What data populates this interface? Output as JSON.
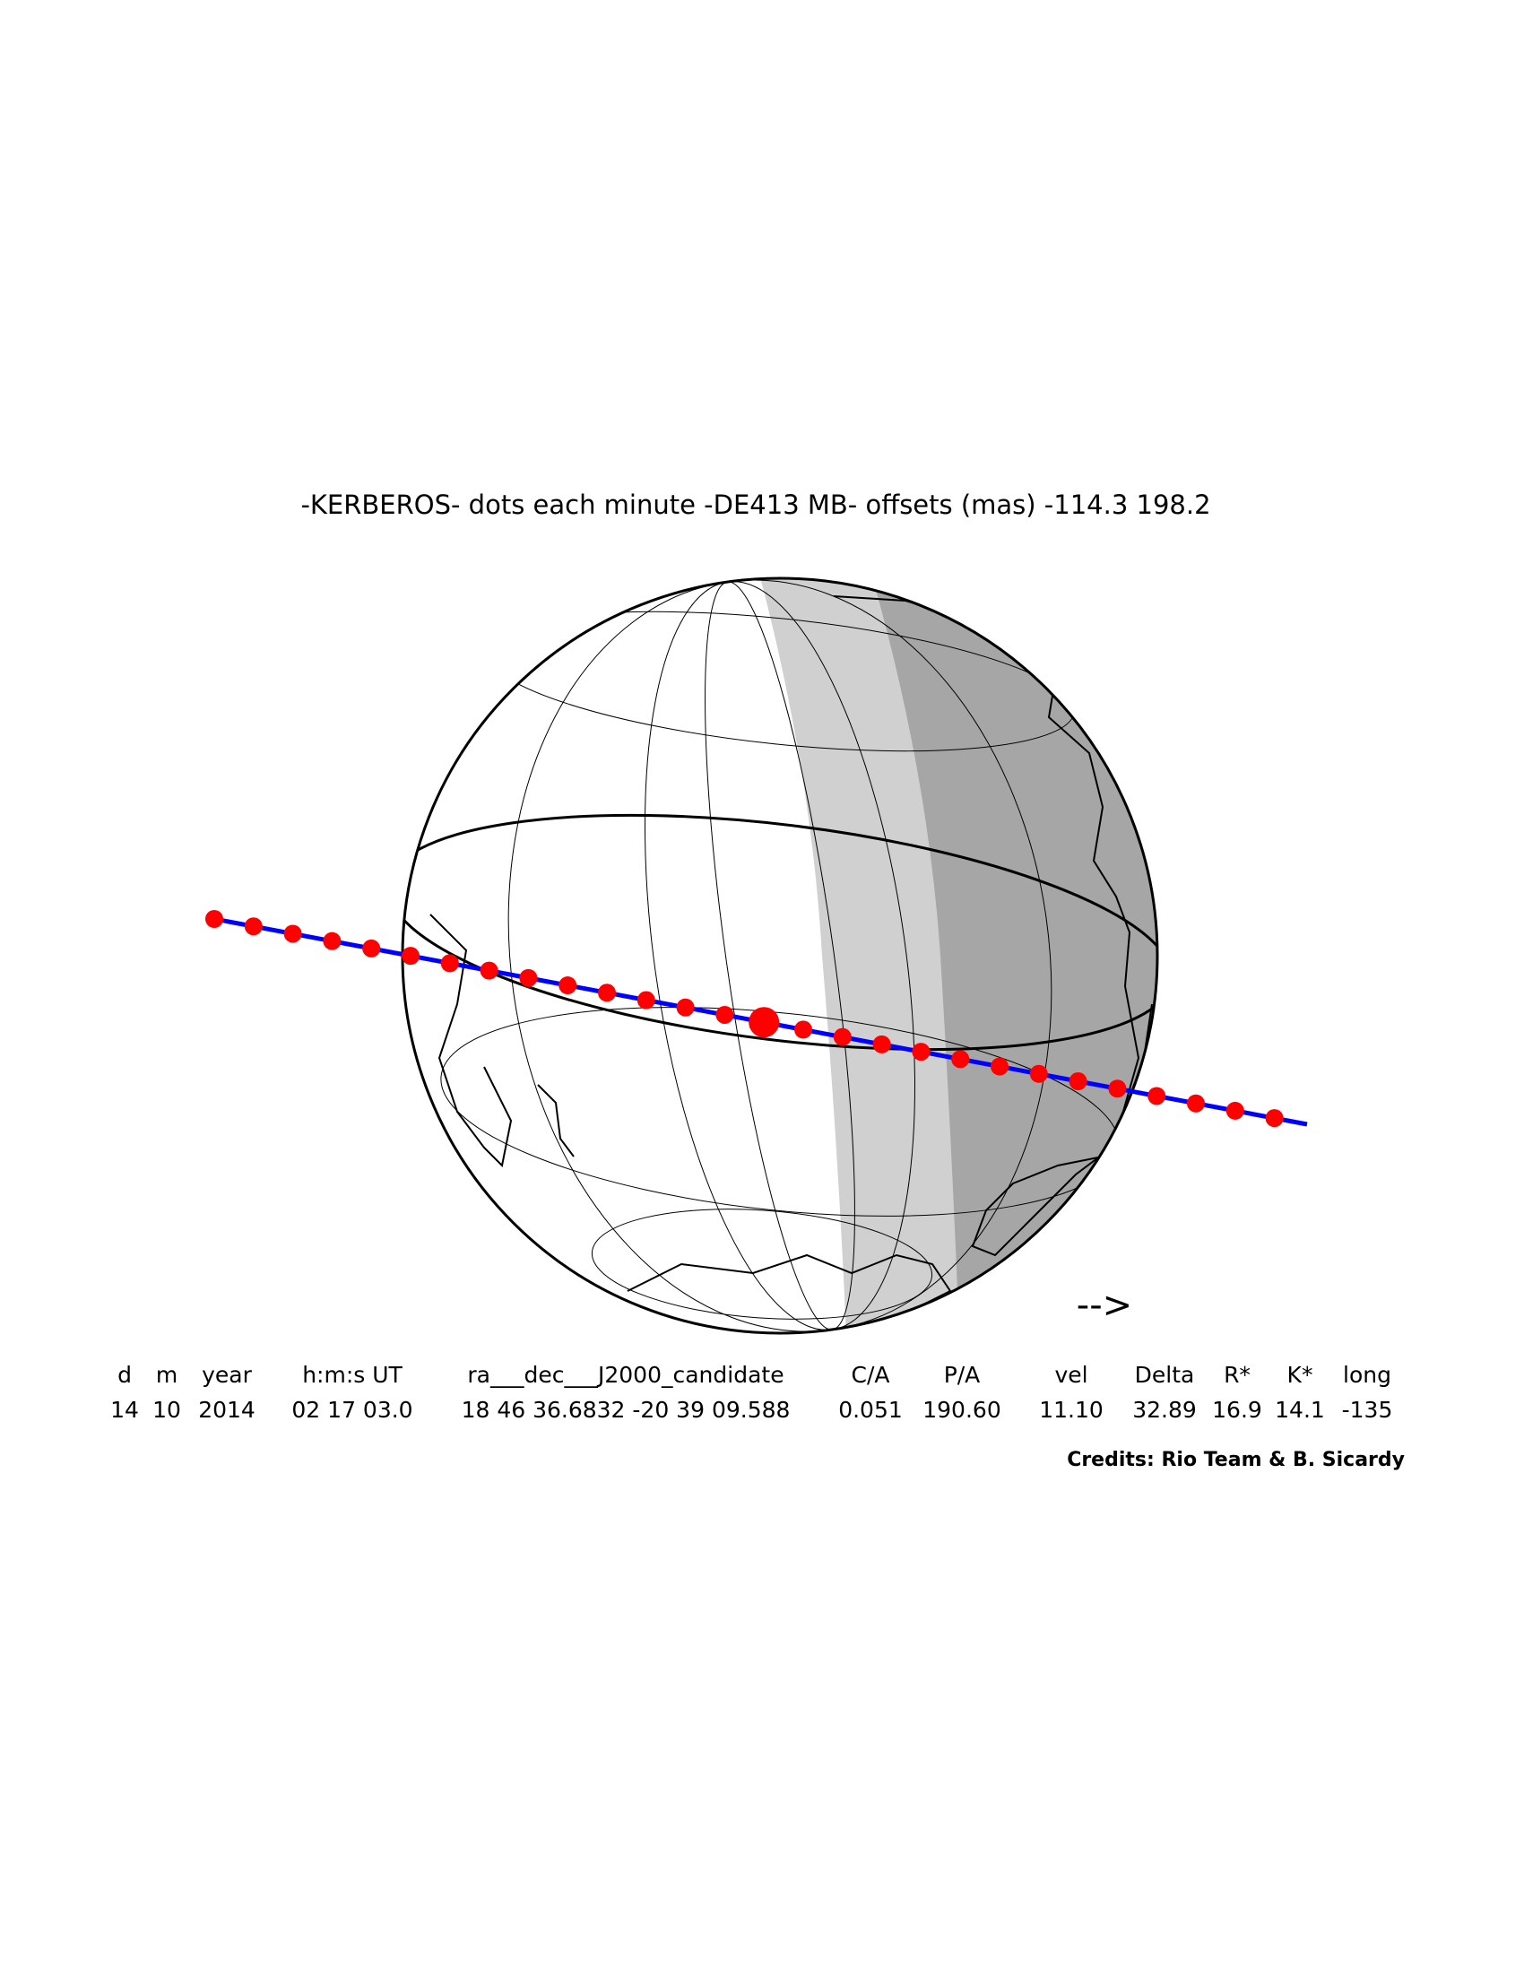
{
  "title": "-KERBEROS- dots each minute -DE413 MB- offsets (mas) -114.3  198.2",
  "arrow": "-->",
  "table": {
    "headers": [
      "d",
      "m",
      "year",
      "h:m:s UT",
      "ra___dec___J2000_candidate",
      "C/A",
      "P/A",
      "vel",
      "Delta",
      "R*",
      "K*",
      "long"
    ],
    "rows": [
      [
        "14",
        "10",
        "2014",
        "02 17 03.0",
        "18 46 36.6832 -20 39 09.588",
        "0.051",
        "190.60",
        "11.10",
        "32.89",
        "16.9",
        "14.1",
        "-135"
      ]
    ]
  },
  "credits": "Credits: Rio Team & B. Sicardy"
}
